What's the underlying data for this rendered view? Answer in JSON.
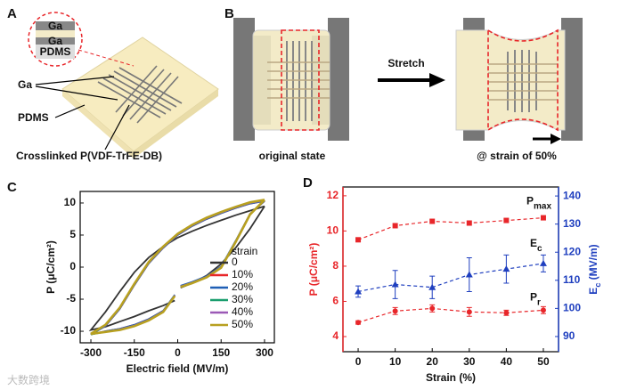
{
  "panel_a": {
    "label": "A",
    "inset_top": "Ga",
    "inset_bottom": "Ga",
    "inset_substrate": "PDMS",
    "ga": "Ga",
    "pdms": "PDMS",
    "film": "Crosslinked P(VDF-TrFE-DB)"
  },
  "panel_b": {
    "label": "B",
    "arrow": "Stretch",
    "left_caption": "original state",
    "right_caption": "@ strain of 50%"
  },
  "watermark": "大数跨境",
  "chart_data": [
    {
      "type": "line",
      "panel": "C",
      "xlabel": "Electric field (MV/m)",
      "ylabel": "P (μC/cm²)",
      "xlim": [
        -337,
        334
      ],
      "xticks": [
        -300,
        -150,
        0,
        150,
        300
      ],
      "ylim": [
        -11.8,
        11.8
      ],
      "yticks": [
        -10,
        -5,
        0,
        5,
        10
      ],
      "legend_title": "strain",
      "legend": "lower right",
      "x": [
        300,
        250,
        200,
        150,
        100,
        50,
        0,
        -50,
        -100,
        -150,
        -200,
        -250,
        -300,
        -250,
        -200,
        -150,
        -100,
        -50,
        -10,
        0,
        10,
        50,
        100,
        150,
        200,
        250,
        300
      ],
      "series": [
        {
          "name": "0",
          "color": "#333333",
          "values": [
            9.5,
            8.8,
            8.1,
            7.3,
            6.5,
            5.6,
            4.6,
            3.2,
            1.5,
            -0.8,
            -3.8,
            -7,
            -9.8,
            -9.3,
            -8.5,
            -7.7,
            -6.8,
            -6,
            -5.2,
            null,
            -3.2,
            -2.5,
            -1.3,
            0.5,
            3,
            6,
            9.5
          ]
        },
        {
          "name": "10%",
          "color": "#e8262a",
          "values": [
            10.3,
            9.9,
            9.2,
            8.4,
            7.5,
            6.4,
            5,
            3,
            0.6,
            -2.8,
            -6.5,
            -9.2,
            -10.5,
            -10,
            -9.6,
            -9,
            -8.1,
            -6.8,
            -4.5,
            null,
            -3,
            -2.4,
            -1.5,
            0,
            4,
            8.3,
            10.3
          ]
        },
        {
          "name": "20%",
          "color": "#1f5fb5",
          "values": [
            10.3,
            9.9,
            9.2,
            8.4,
            7.5,
            6.4,
            5,
            3,
            0.6,
            -2.8,
            -6.5,
            -9.2,
            -10.5,
            -10,
            -9.6,
            -9,
            -8.1,
            -6.8,
            -4.3,
            null,
            -2.9,
            -2.3,
            -1.4,
            0.1,
            4.1,
            8.3,
            10.3
          ]
        },
        {
          "name": "30%",
          "color": "#1a9e6e",
          "values": [
            10.4,
            10,
            9.3,
            8.5,
            7.6,
            6.5,
            5.1,
            3.1,
            0.7,
            -2.7,
            -6.4,
            -9.1,
            -10.5,
            -10.1,
            -9.7,
            -9.1,
            -8.2,
            -6.9,
            -4.4,
            null,
            -3,
            -2.4,
            -1.5,
            0,
            4,
            8.3,
            10.4
          ]
        },
        {
          "name": "40%",
          "color": "#9b59b6",
          "values": [
            10.4,
            10,
            9.3,
            8.5,
            7.6,
            6.5,
            5.1,
            3.1,
            0.7,
            -2.7,
            -6.4,
            -9.1,
            -10.4,
            -10.1,
            -9.7,
            -9.1,
            -8.2,
            -6.9,
            -4.4,
            null,
            -3,
            -2.4,
            -1.5,
            0,
            4,
            8.3,
            10.4
          ]
        },
        {
          "name": "50%",
          "color": "#b8a020",
          "values": [
            10.5,
            10.1,
            9.4,
            8.6,
            7.7,
            6.6,
            5.2,
            3.2,
            0.8,
            -2.6,
            -6.3,
            -9,
            -10.4,
            -10.1,
            -9.8,
            -9.2,
            -8.3,
            -7,
            -4.5,
            null,
            -3.1,
            -2.5,
            -1.6,
            -0.1,
            3.9,
            8.2,
            10.5
          ]
        }
      ]
    },
    {
      "type": "line",
      "panel": "D",
      "xlabel": "Strain (%)",
      "ylabel": "P (μC/cm²)",
      "y2label": [
        "E",
        "c",
        " (MV/m)"
      ],
      "xlim": [
        -4.1,
        54.1
      ],
      "xticks": [
        0,
        10,
        20,
        30,
        40,
        50
      ],
      "ylim": [
        3.14,
        12.5
      ],
      "yticks": [
        4,
        6,
        8,
        10,
        12
      ],
      "y2lim": [
        84.6,
        143.2
      ],
      "y2ticks": [
        90,
        100,
        110,
        120,
        130,
        140
      ],
      "x": [
        0,
        10,
        20,
        30,
        40,
        50
      ],
      "series": [
        {
          "name": [
            "P",
            "max"
          ],
          "color": "#e8262a",
          "marker": "square",
          "values": [
            9.5,
            10.3,
            10.55,
            10.45,
            10.6,
            10.75
          ]
        },
        {
          "name": [
            "E",
            "c"
          ],
          "color": "#1f3fbf",
          "marker": "triangle",
          "axis": "y2",
          "values": [
            106,
            108.5,
            107.5,
            112,
            114,
            116
          ],
          "errors": [
            2,
            5,
            4,
            6,
            5,
            3
          ]
        },
        {
          "name": [
            "P",
            "r"
          ],
          "color": "#e8262a",
          "marker": "circle",
          "values": [
            4.8,
            5.45,
            5.6,
            5.4,
            5.35,
            5.5
          ],
          "errors": [
            0.1,
            0.2,
            0.2,
            0.25,
            0.15,
            0.2
          ]
        }
      ]
    }
  ]
}
